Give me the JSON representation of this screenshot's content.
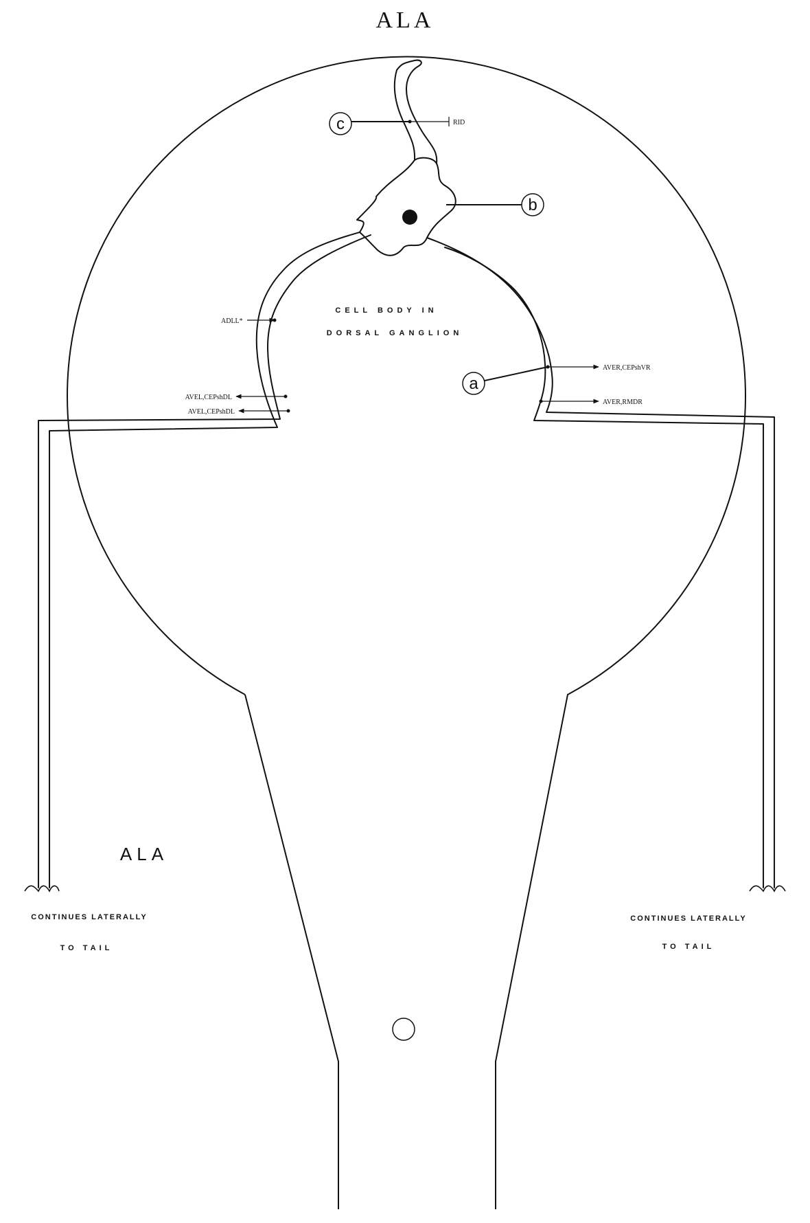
{
  "title": "ALA",
  "body_label": "ALA",
  "cell_body_caption": [
    "CELL BODY IN",
    "DORSAL GANGLION"
  ],
  "continues_left": [
    "CONTINUES LATERALLY",
    "TO TAIL"
  ],
  "continues_right": [
    "CONTINUES LATERALLY",
    "TO TAIL"
  ],
  "callouts": [
    "c",
    "b",
    "a"
  ],
  "synapses": {
    "rid": "RID",
    "adll": "ADLL*",
    "avel_1": "AVEL,CEPshDL",
    "avel_2": "AVEL,CEPshDL",
    "aver_1": "AVER,CEPshVR",
    "aver_2": "AVER,RMDR"
  }
}
